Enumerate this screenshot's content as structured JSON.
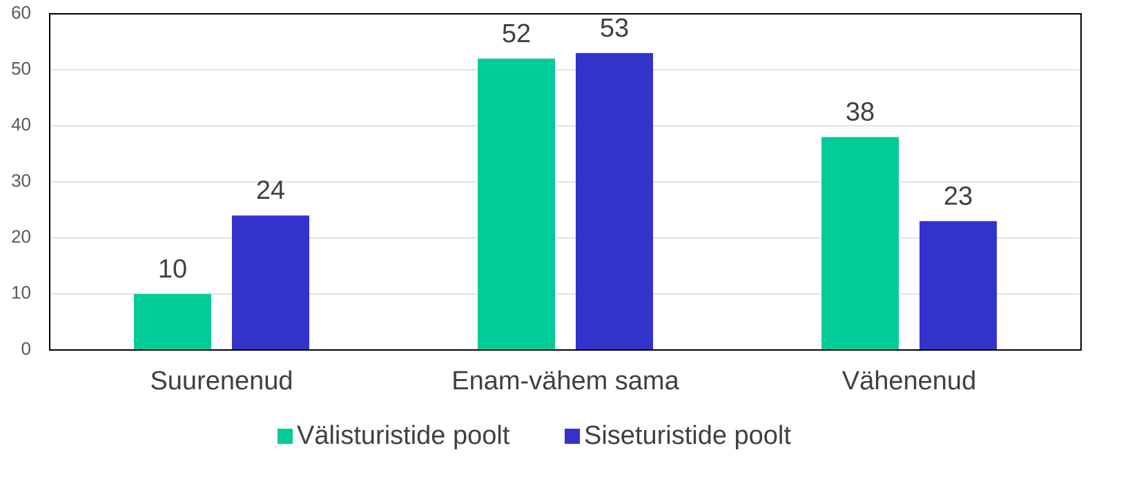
{
  "chart_data": {
    "type": "bar",
    "categories": [
      "Suurenenud",
      "Enam-vähem sama",
      "Vähenenud"
    ],
    "series": [
      {
        "name": "Välisturistide poolt",
        "color": "#00cc99",
        "values": [
          10,
          52,
          38
        ]
      },
      {
        "name": "Siseturistide poolt",
        "color": "#3333cc",
        "values": [
          24,
          53,
          23
        ]
      }
    ],
    "ylim": [
      0,
      60
    ],
    "yticks": [
      0,
      10,
      20,
      30,
      40,
      50,
      60
    ],
    "grid": true,
    "legend": "bottom"
  }
}
